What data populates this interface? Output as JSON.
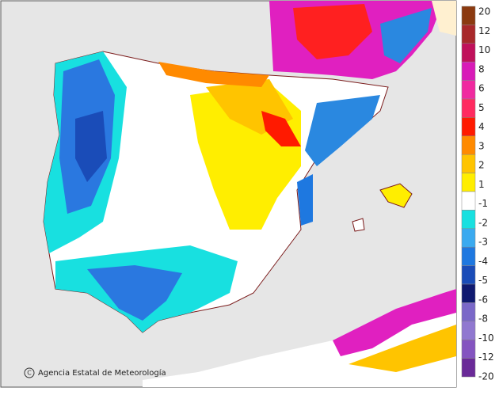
{
  "map": {
    "attribution": "Agencia Estatal de Meteorología",
    "attribution_symbol": "C",
    "legend": [
      {
        "label": 20,
        "color": "#8b3a10"
      },
      {
        "label": 12,
        "color": "#a8282a"
      },
      {
        "label": 10,
        "color": "#c0105a"
      },
      {
        "label": 8,
        "color": "#d81ab8"
      },
      {
        "label": 6,
        "color": "#f02aa0"
      },
      {
        "label": 5,
        "color": "#ff2a60"
      },
      {
        "label": 4,
        "color": "#ff1a00"
      },
      {
        "label": 3,
        "color": "#ff8a00"
      },
      {
        "label": 2,
        "color": "#ffc400"
      },
      {
        "label": 1,
        "color": "#ffee00"
      },
      {
        "label": -1,
        "color": "#ffffff"
      },
      {
        "label": -2,
        "color": "#18e0e0"
      },
      {
        "label": -3,
        "color": "#3aaaf0"
      },
      {
        "label": -4,
        "color": "#1e78e0"
      },
      {
        "label": -5,
        "color": "#1a4cb8"
      },
      {
        "label": -6,
        "color": "#101a70"
      },
      {
        "label": -8,
        "color": "#7a68c8"
      },
      {
        "label": -10,
        "color": "#9078d0"
      },
      {
        "label": -12,
        "color": "#8454c0"
      },
      {
        "label": -20,
        "color": "#6a2a98"
      }
    ]
  }
}
